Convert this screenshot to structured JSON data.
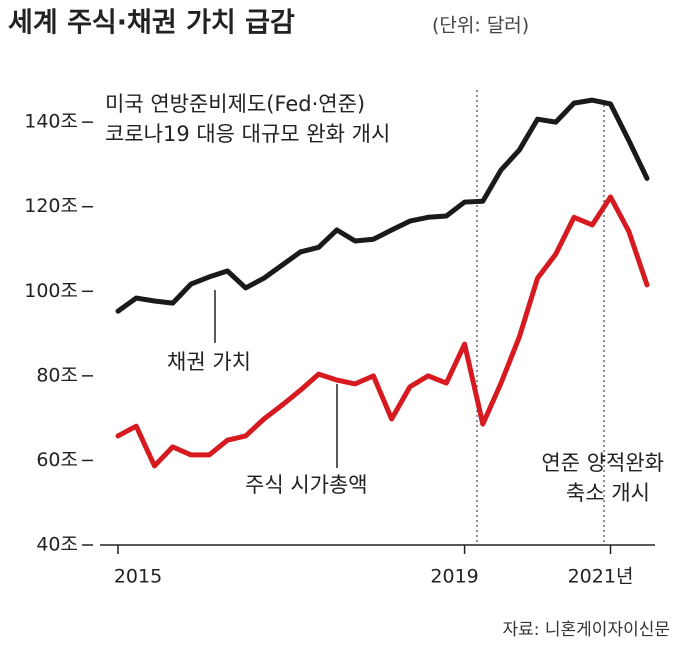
{
  "chart_data": {
    "type": "line",
    "title": "세계 주식·채권 가치 급감",
    "subtitle": "(단위: 달러)",
    "source": "자료: 니혼게이자이신문",
    "categories": [
      "2015",
      null,
      null,
      null,
      null,
      null,
      null,
      null,
      null,
      null,
      null,
      null,
      null,
      null,
      null,
      null,
      null,
      null,
      null,
      "2019",
      null,
      null,
      null,
      null,
      null,
      null,
      null,
      "2021년",
      null,
      null
    ],
    "series": [
      {
        "name": "채권 가치",
        "color": "#1a1a1a",
        "values": [
          95.3,
          98.4,
          97.7,
          97.2,
          101.7,
          103.4,
          104.8,
          100.8,
          103.1,
          106.2,
          109.3,
          110.4,
          114.5,
          111.9,
          112.3,
          114.5,
          116.6,
          117.5,
          117.8,
          121.1,
          121.3,
          128.7,
          133.4,
          140.7,
          140.0,
          144.5,
          145.2,
          144.3,
          135.7,
          126.7
        ]
      },
      {
        "name": "주식 시가총액",
        "color": "#d71920",
        "values": [
          65.8,
          68.1,
          58.7,
          63.2,
          61.3,
          61.3,
          64.8,
          65.8,
          69.8,
          73.1,
          76.6,
          80.4,
          79.0,
          78.1,
          80.0,
          69.8,
          77.4,
          80.0,
          78.3,
          87.5,
          68.6,
          78.3,
          89.2,
          103.1,
          108.8,
          117.5,
          115.7,
          122.3,
          114.2,
          101.5
        ]
      }
    ],
    "ylim": [
      40,
      145
    ],
    "yticks": [
      {
        "value": 40,
        "label": "40조"
      },
      {
        "value": 60,
        "label": "60조"
      },
      {
        "value": 80,
        "label": "80조"
      },
      {
        "value": 100,
        "label": "100조"
      },
      {
        "value": 120,
        "label": "120조"
      },
      {
        "value": 140,
        "label": "140조"
      }
    ],
    "annotations": [
      {
        "lines": [
          "미국 연방준비제도(Fed·연준)",
          "코로나19 대응 대규모 완화 개시"
        ]
      },
      {
        "lines": [
          "연준 양적완화",
          "축소 개시"
        ]
      }
    ]
  }
}
